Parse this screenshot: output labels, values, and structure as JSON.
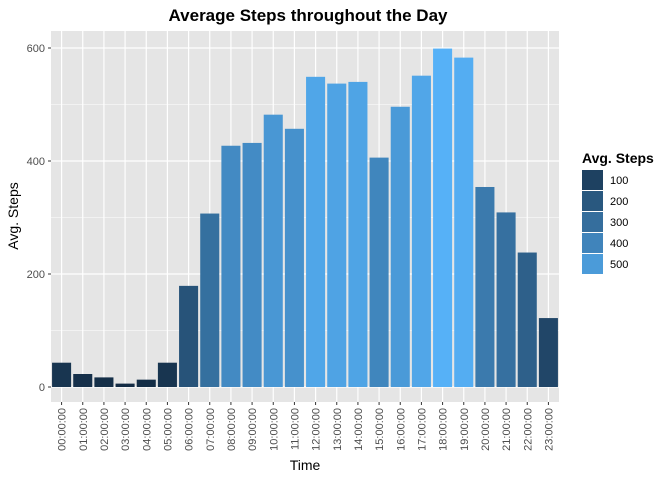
{
  "chart_data": {
    "type": "bar",
    "title": "Average Steps throughout the Day",
    "xlabel": "Time",
    "ylabel": "Avg. Steps",
    "ylim": [
      0,
      625
    ],
    "y_ticks": [
      0,
      200,
      400,
      600
    ],
    "categories": [
      "00:00:00",
      "01:00:00",
      "02:00:00",
      "03:00:00",
      "04:00:00",
      "05:00:00",
      "06:00:00",
      "07:00:00",
      "08:00:00",
      "09:00:00",
      "10:00:00",
      "11:00:00",
      "12:00:00",
      "13:00:00",
      "14:00:00",
      "15:00:00",
      "16:00:00",
      "17:00:00",
      "18:00:00",
      "19:00:00",
      "20:00:00",
      "21:00:00",
      "22:00:00",
      "23:00:00"
    ],
    "values": [
      43,
      23,
      17,
      6,
      13,
      43,
      179,
      307,
      427,
      432,
      482,
      457,
      549,
      537,
      540,
      406,
      496,
      551,
      599,
      583,
      354,
      309,
      238,
      122
    ],
    "grid": true,
    "panel_background": "#e5e5e5",
    "grid_color": "#ffffff",
    "color_scale": {
      "low_value": 0,
      "high_value": 600,
      "low": "#132b43",
      "high": "#56b1f7"
    },
    "legend": {
      "title": "Avg. Steps",
      "position": "right",
      "entries": [
        {
          "label": "100",
          "value": 100
        },
        {
          "label": "200",
          "value": 200
        },
        {
          "label": "300",
          "value": 300
        },
        {
          "label": "400",
          "value": 400
        },
        {
          "label": "500",
          "value": 500
        }
      ]
    }
  }
}
